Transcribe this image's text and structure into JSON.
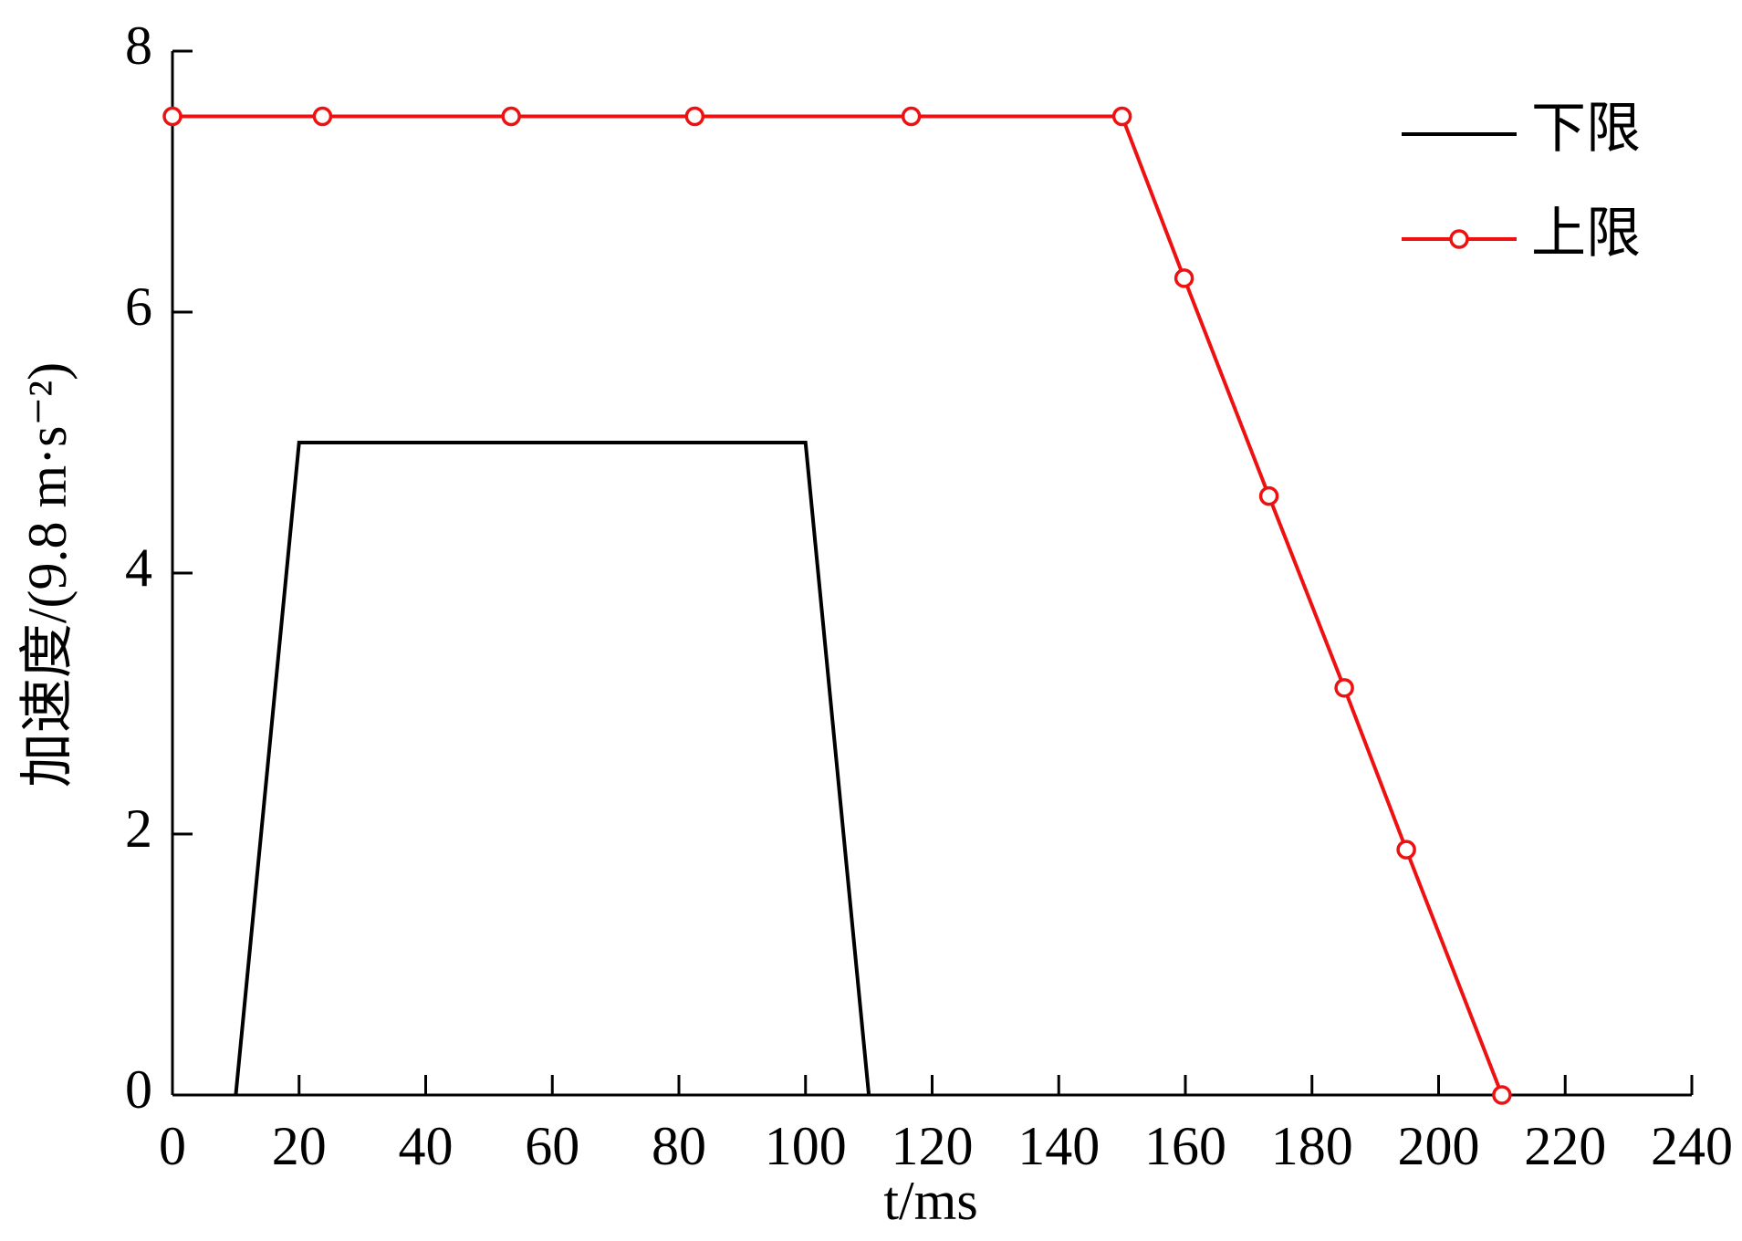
{
  "chart_data": {
    "type": "line",
    "xlabel": "t/ms",
    "ylabel": "加速度/(9.8 m·s⁻²)",
    "xlim": [
      0,
      240
    ],
    "xticks": [
      0,
      20,
      40,
      60,
      80,
      100,
      120,
      140,
      160,
      180,
      200,
      220,
      240
    ],
    "ylim": [
      0,
      8
    ],
    "yticks": [
      0,
      2,
      4,
      6,
      8
    ],
    "grid": false,
    "legend": "upper right",
    "series": [
      {
        "name": "下限",
        "color": "#000000",
        "marker": false,
        "x": [
          10,
          20,
          100,
          110
        ],
        "values": [
          0,
          5,
          5,
          0
        ]
      },
      {
        "name": "上限",
        "color": "#ee1111",
        "marker": true,
        "x": [
          0,
          23.7,
          53.5,
          82.5,
          116.7,
          150,
          159.8,
          173.2,
          185.1,
          194.9,
          210
        ],
        "values": [
          7.5,
          7.5,
          7.5,
          7.5,
          7.5,
          7.5,
          6.26,
          4.59,
          3.12,
          1.88,
          0
        ]
      }
    ]
  }
}
